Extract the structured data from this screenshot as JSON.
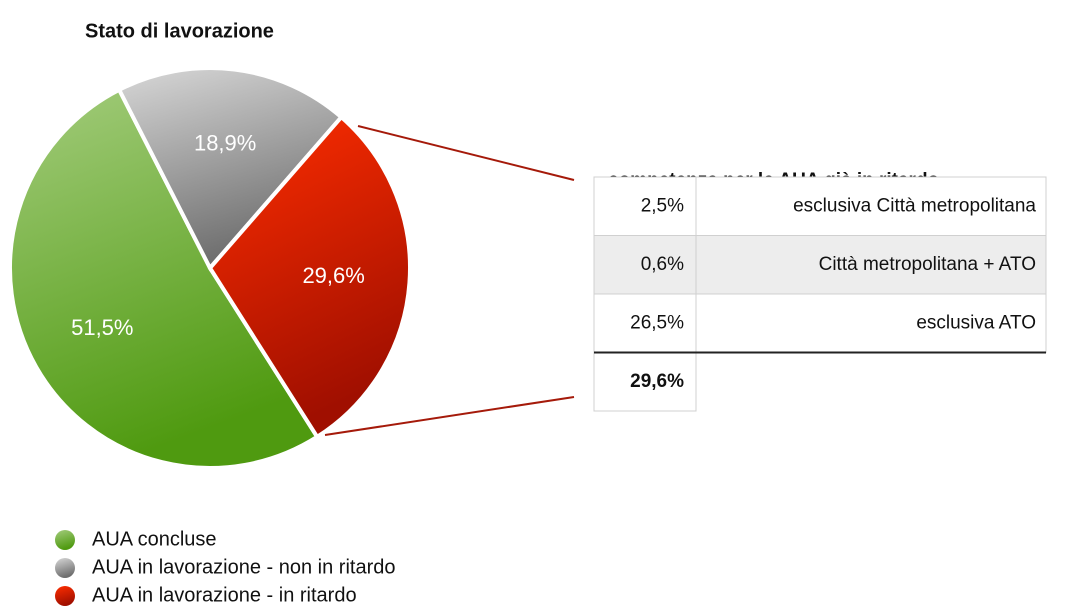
{
  "chart_data": {
    "type": "pie",
    "title": "Stato di lavorazione",
    "categories": [
      "AUA concluse",
      "AUA in lavorazione  - non in ritardo",
      "AUA in lavorazione - in ritardo"
    ],
    "values": [
      51.5,
      18.9,
      29.6
    ],
    "value_labels": [
      "51,5%",
      "18,9%",
      "29,6%"
    ],
    "colors": [
      [
        "#a3cc7c",
        "#4f9a10"
      ],
      [
        "#d8d8d8",
        "#6e6e6e"
      ],
      [
        "#ff2e00",
        "#a00f00"
      ]
    ]
  },
  "table": {
    "title": "competenza per le AUA già in ritardo",
    "rows": [
      [
        "2,5%",
        "esclusiva Città metropolitana"
      ],
      [
        "0,6%",
        "Città metropolitana + ATO"
      ],
      [
        "26,5%",
        "esclusiva ATO"
      ]
    ],
    "total": "29,6%"
  }
}
